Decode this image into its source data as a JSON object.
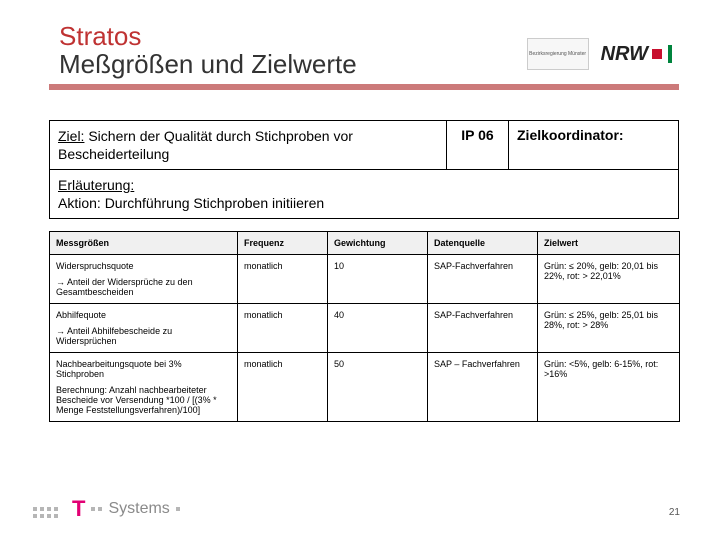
{
  "title": {
    "stratos": "Stratos",
    "sub": "Meßgrößen und Zielwerte"
  },
  "logos": {
    "br": "Bezirksregierung Münster",
    "nrw": "NRW"
  },
  "box1": {
    "label": "Ziel:",
    "text": " Sichern der Qualität durch Stichproben vor Bescheiderteilung",
    "ip": "IP 06",
    "coord": "Zielkoordinator:"
  },
  "box2": {
    "label": "Erläuterung:",
    "text": "Aktion: Durchführung Stichproben initiieren"
  },
  "headers": {
    "c1": "Messgrößen",
    "c2": "Frequenz",
    "c3": "Gewichtung",
    "c4": "Datenquelle",
    "c5": "Zielwert"
  },
  "rows": [
    {
      "title": "Widerspruchsquote",
      "note": "→ Anteil der Widersprüche zu den Gesamtbescheiden",
      "freq": "monatlich",
      "weight": "10",
      "src": "SAP-Fachverfahren",
      "target": "Grün: ≤ 20%, gelb: 20,01 bis 22%, rot: > 22,01%"
    },
    {
      "title": "Abhilfequote",
      "note": "→ Anteil Abhilfebescheide zu Widersprüchen",
      "freq": "monatlich",
      "weight": "40",
      "src": "SAP-Fachverfahren",
      "target": "Grün: ≤ 25%, gelb: 25,01 bis 28%, rot: > 28%"
    },
    {
      "title": "Nachbearbeitungsquote bei 3% Stichproben",
      "note": "Berechnung: Anzahl nachbearbeiteter Bescheide vor Versendung *100 / [(3% * Menge Feststellungsverfahren)/100]",
      "freq": "monatlich",
      "weight": "50",
      "src": "SAP – Fachverfahren",
      "target": "Grün: <5%, gelb: 6-15%, rot: >16%"
    }
  ],
  "footer": {
    "brand_t": "T",
    "brand_sys": "• • Systems •",
    "page": "21"
  }
}
